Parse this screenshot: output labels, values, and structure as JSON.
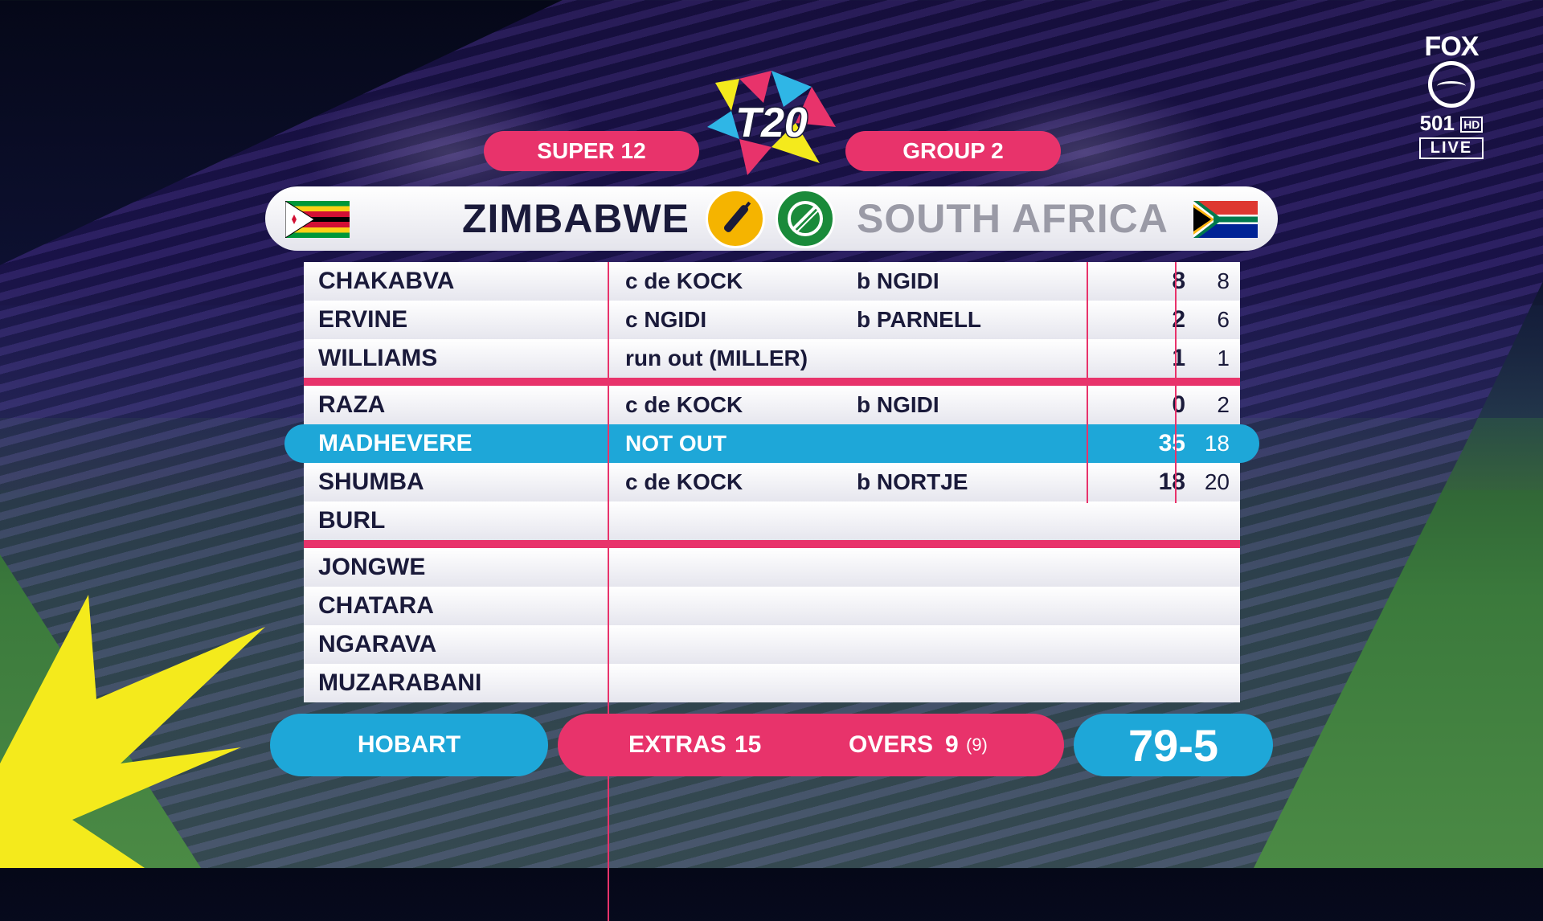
{
  "broadcaster": {
    "brand": "FOX",
    "channel_number": "501",
    "channel_quality": "HD",
    "live": "LIVE"
  },
  "header": {
    "stage": "SUPER 12",
    "group": "GROUP 2",
    "logo_text": "T20"
  },
  "teams": {
    "batting": "ZIMBABWE",
    "bowling": "SOUTH AFRICA"
  },
  "innings": [
    {
      "name": "CHAKABVA",
      "dismissal": "c de KOCK",
      "bowler": "b NGIDI",
      "runs": "8",
      "balls": "8"
    },
    {
      "name": "ERVINE",
      "dismissal": "c NGIDI",
      "bowler": "b PARNELL",
      "runs": "2",
      "balls": "6"
    },
    {
      "name": "WILLIAMS",
      "dismissal": "run out (MILLER)",
      "bowler": "",
      "runs": "1",
      "balls": "1"
    },
    {
      "name": "RAZA",
      "dismissal": "c de KOCK",
      "bowler": "b NGIDI",
      "runs": "0",
      "balls": "2"
    },
    {
      "name": "MADHEVERE",
      "dismissal": "NOT OUT",
      "bowler": "",
      "runs": "35",
      "balls": "18"
    },
    {
      "name": "SHUMBA",
      "dismissal": "c de KOCK",
      "bowler": "b NORTJE",
      "runs": "18",
      "balls": "20"
    },
    {
      "name": "BURL",
      "dismissal": "",
      "bowler": "",
      "runs": "",
      "balls": ""
    },
    {
      "name": "JONGWE",
      "dismissal": "",
      "bowler": "",
      "runs": "",
      "balls": ""
    },
    {
      "name": "CHATARA",
      "dismissal": "",
      "bowler": "",
      "runs": "",
      "balls": ""
    },
    {
      "name": "NGARAVA",
      "dismissal": "",
      "bowler": "",
      "runs": "",
      "balls": ""
    },
    {
      "name": "MUZARABANI",
      "dismissal": "",
      "bowler": "",
      "runs": "",
      "balls": ""
    }
  ],
  "footer": {
    "venue": "HOBART",
    "extras_label": "EXTRAS",
    "extras_value": "15",
    "overs_label": "OVERS",
    "overs_value": "9",
    "overs_sub": "(9)",
    "total": "79-5"
  },
  "colors": {
    "pink": "#e8336b",
    "cyan": "#1ea7d8",
    "navy": "#1a1a3a"
  }
}
